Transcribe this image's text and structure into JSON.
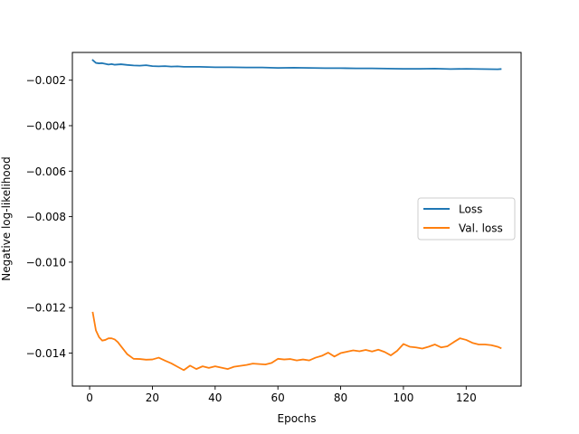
{
  "chart_data": {
    "type": "line",
    "title": "",
    "xlabel": "Epochs",
    "ylabel": "Negative log-likelihood",
    "xlim": [
      -5.5,
      137.5
    ],
    "ylim": [
      -0.01545,
      -0.00078
    ],
    "xticks": [
      0,
      20,
      40,
      60,
      80,
      100,
      120
    ],
    "xtick_labels": [
      "0",
      "20",
      "40",
      "60",
      "80",
      "100",
      "120"
    ],
    "yticks": [
      -0.002,
      -0.004,
      -0.006,
      -0.008,
      -0.01,
      -0.012,
      -0.014
    ],
    "ytick_labels": [
      "−0.002",
      "−0.004",
      "−0.006",
      "−0.008",
      "−0.010",
      "−0.012",
      "−0.014"
    ],
    "grid": false,
    "legend_position": "center-right",
    "series": [
      {
        "name": "Loss",
        "color": "#1f77b4",
        "x": [
          1,
          2,
          3,
          4,
          5,
          6,
          7,
          8,
          9,
          10,
          12,
          14,
          16,
          18,
          20,
          22,
          24,
          26,
          28,
          30,
          35,
          40,
          45,
          50,
          55,
          60,
          65,
          70,
          75,
          80,
          85,
          90,
          95,
          100,
          105,
          110,
          115,
          120,
          125,
          130,
          131
        ],
        "values": [
          -0.00112,
          -0.00124,
          -0.00126,
          -0.00125,
          -0.00128,
          -0.00131,
          -0.00129,
          -0.00132,
          -0.00131,
          -0.0013,
          -0.00133,
          -0.00135,
          -0.00136,
          -0.00134,
          -0.00138,
          -0.00139,
          -0.00138,
          -0.0014,
          -0.00139,
          -0.00141,
          -0.00141,
          -0.00143,
          -0.00143,
          -0.00144,
          -0.00144,
          -0.00146,
          -0.00145,
          -0.00146,
          -0.00147,
          -0.00147,
          -0.00148,
          -0.00148,
          -0.00149,
          -0.0015,
          -0.0015,
          -0.00149,
          -0.00151,
          -0.0015,
          -0.00151,
          -0.00152,
          -0.00151
        ]
      },
      {
        "name": "Val. loss",
        "color": "#ff7f0e",
        "x": [
          1,
          2,
          3,
          4,
          5,
          6,
          7,
          8,
          9,
          10,
          12,
          14,
          16,
          18,
          20,
          22,
          24,
          26,
          28,
          30,
          32,
          34,
          36,
          38,
          40,
          42,
          44,
          46,
          48,
          50,
          52,
          54,
          56,
          58,
          60,
          62,
          64,
          66,
          68,
          70,
          72,
          74,
          76,
          78,
          80,
          82,
          84,
          86,
          88,
          90,
          92,
          94,
          96,
          98,
          100,
          102,
          104,
          106,
          108,
          110,
          112,
          114,
          116,
          118,
          120,
          122,
          124,
          126,
          128,
          130,
          131
        ],
        "values": [
          -0.01222,
          -0.013,
          -0.0133,
          -0.01345,
          -0.01342,
          -0.01335,
          -0.01335,
          -0.0134,
          -0.01352,
          -0.0137,
          -0.01405,
          -0.01425,
          -0.01426,
          -0.01429,
          -0.01428,
          -0.0142,
          -0.01433,
          -0.01445,
          -0.0146,
          -0.01475,
          -0.01455,
          -0.0147,
          -0.01458,
          -0.01465,
          -0.01458,
          -0.01464,
          -0.0147,
          -0.0146,
          -0.01456,
          -0.01452,
          -0.01446,
          -0.01448,
          -0.0145,
          -0.01443,
          -0.01425,
          -0.01428,
          -0.01426,
          -0.01432,
          -0.01428,
          -0.01432,
          -0.0142,
          -0.01412,
          -0.01398,
          -0.01415,
          -0.014,
          -0.01394,
          -0.01388,
          -0.01392,
          -0.01386,
          -0.01393,
          -0.01385,
          -0.01395,
          -0.0141,
          -0.0139,
          -0.0136,
          -0.01372,
          -0.01375,
          -0.0138,
          -0.01372,
          -0.01362,
          -0.01375,
          -0.0137,
          -0.01352,
          -0.01335,
          -0.01342,
          -0.01355,
          -0.01362,
          -0.01362,
          -0.01365,
          -0.01372,
          -0.01378
        ]
      }
    ]
  }
}
